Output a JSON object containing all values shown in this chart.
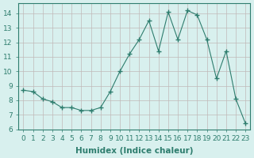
{
  "x": [
    0,
    1,
    2,
    3,
    4,
    5,
    6,
    7,
    8,
    9,
    10,
    11,
    12,
    13,
    14,
    15,
    16,
    17,
    18,
    19,
    20,
    21,
    22,
    23
  ],
  "y": [
    8.7,
    8.6,
    8.1,
    7.9,
    7.5,
    7.5,
    7.3,
    7.3,
    7.5,
    8.6,
    10.0,
    11.2,
    12.2,
    13.5,
    11.4,
    14.1,
    12.2,
    14.2,
    13.9,
    12.2,
    9.5,
    11.4,
    8.1,
    6.4
  ],
  "line_color": "#2e7d6e",
  "marker": "+",
  "marker_size": 4,
  "bg_color": "#d8f0ee",
  "grid_color": "#c0b8b8",
  "xlabel": "Humidex (Indice chaleur)",
  "ylabel": "",
  "xlim": [
    -0.5,
    23.5
  ],
  "ylim": [
    6,
    14.7
  ],
  "yticks": [
    6,
    7,
    8,
    9,
    10,
    11,
    12,
    13,
    14
  ],
  "xticks": [
    0,
    1,
    2,
    3,
    4,
    5,
    6,
    7,
    8,
    9,
    10,
    11,
    12,
    13,
    14,
    15,
    16,
    17,
    18,
    19,
    20,
    21,
    22,
    23
  ],
  "xlabel_fontsize": 7.5,
  "tick_fontsize": 6.5
}
